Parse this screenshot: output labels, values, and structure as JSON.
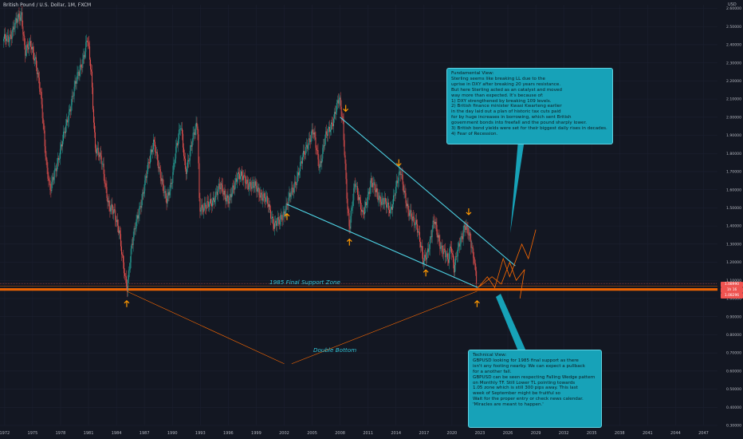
{
  "header": {
    "symbol_title": "British Pound / U.S. Dollar, 1M, FXCM",
    "currency": "USD"
  },
  "colors": {
    "background": "#131722",
    "up": "#26a69a",
    "down": "#ef5350",
    "trendline": "#4dd0e1",
    "support": "#ff6a00",
    "arrow": "#ff9800",
    "callout": "#17a2b8"
  },
  "annotations": {
    "support_zone": "1985 Final Support Zone",
    "double_bottom": "Double Bottom",
    "fundamental": "Fundamental View:\nSterling seems like breaking LL due to the\nuprise in DXY after breaking 20 years resistance.\nBut here Sterling acted as an catalyst and moved\nway more than expected. It's because of:\n1) DXY strengthened by breaking 109 levels.\n2) British finance minister Kwasi Kwarteng earlier\nin the day laid out a plan of historic tax cuts paid\nfor by huge increases in borrowing, which sent British\ngovernment bonds into freefall and the pound sharply lower.\n3) British bond yields were set for their biggest daily rises in decades.\n4) Fear of Recession.",
    "technical": "Technical View:\nGBPUSD looking for 1985 final support as there\nisn't any footing nearby. We can expect a pullback\nfor a another fall.\nGBPUSD can be seen respecting Falling Wedge pattern\non Monthly TF. Still Lower TL pointing towards\n1.05 zone which is still 300 pips away. This last\nweek of September might be fruitful so\nWait for the proper entry or check news calendar.\n'Miracles are meant to happen.'"
  },
  "price_badges": [
    {
      "value": "1.08990",
      "sub": "",
      "color": "#ef5350"
    },
    {
      "value": "1h 16",
      "sub": "",
      "color": "#ef5350"
    },
    {
      "value": "1.08296",
      "sub": "",
      "color": "#ef5350"
    }
  ],
  "chart_data": {
    "type": "candlestick",
    "title": "British Pound / U.S. Dollar, 1M, FXCM",
    "xlabel": "",
    "ylabel": "USD",
    "xlim": [
      1971.5,
      2048.5
    ],
    "ylim": [
      0.3,
      2.62
    ],
    "x_ticks": [
      "1972",
      "1975",
      "1978",
      "1981",
      "1984",
      "1987",
      "1990",
      "1993",
      "1996",
      "1999",
      "2002",
      "2005",
      "2008",
      "2011",
      "2014",
      "2017",
      "2020",
      "2023",
      "2026",
      "2029",
      "2032",
      "2035",
      "2038",
      "2041",
      "2044",
      "2047"
    ],
    "y_ticks": [
      "2.60000",
      "2.50000",
      "2.40000",
      "2.30000",
      "2.20000",
      "2.10000",
      "2.00000",
      "1.90000",
      "1.80000",
      "1.70000",
      "1.60000",
      "1.50000",
      "1.40000",
      "1.30000",
      "1.20000",
      "1.10000",
      "1.00000",
      "0.90000",
      "0.80000",
      "0.70000",
      "0.60000",
      "0.50000",
      "0.40000",
      "0.30000"
    ],
    "price_path": [
      [
        1971.8,
        2.42
      ],
      [
        1972.5,
        2.44
      ],
      [
        1973.2,
        2.52
      ],
      [
        1973.8,
        2.57
      ],
      [
        1974.2,
        2.36
      ],
      [
        1974.8,
        2.4
      ],
      [
        1975.3,
        2.32
      ],
      [
        1975.9,
        2.1
      ],
      [
        1976.5,
        1.74
      ],
      [
        1976.9,
        1.59
      ],
      [
        1977.5,
        1.72
      ],
      [
        1978.5,
        1.93
      ],
      [
        1979.2,
        2.1
      ],
      [
        1979.8,
        2.22
      ],
      [
        1980.5,
        2.34
      ],
      [
        1980.9,
        2.43
      ],
      [
        1981.3,
        2.24
      ],
      [
        1981.7,
        1.84
      ],
      [
        1982.5,
        1.74
      ],
      [
        1983.2,
        1.5
      ],
      [
        1983.8,
        1.47
      ],
      [
        1984.3,
        1.38
      ],
      [
        1984.7,
        1.18
      ],
      [
        1985.1,
        1.05
      ],
      [
        1985.6,
        1.29
      ],
      [
        1986.2,
        1.43
      ],
      [
        1987.2,
        1.67
      ],
      [
        1988.0,
        1.88
      ],
      [
        1988.6,
        1.69
      ],
      [
        1989.4,
        1.55
      ],
      [
        1989.9,
        1.62
      ],
      [
        1990.4,
        1.84
      ],
      [
        1990.9,
        1.96
      ],
      [
        1991.4,
        1.69
      ],
      [
        1992.1,
        1.87
      ],
      [
        1992.7,
        1.96
      ],
      [
        1992.9,
        1.51
      ],
      [
        1993.6,
        1.5
      ],
      [
        1994.4,
        1.55
      ],
      [
        1995.2,
        1.62
      ],
      [
        1996.1,
        1.53
      ],
      [
        1997.0,
        1.69
      ],
      [
        1998.0,
        1.64
      ],
      [
        1999.0,
        1.61
      ],
      [
        2000.2,
        1.53
      ],
      [
        2000.9,
        1.41
      ],
      [
        2001.5,
        1.42
      ],
      [
        2002.3,
        1.52
      ],
      [
        2003.0,
        1.61
      ],
      [
        2003.8,
        1.74
      ],
      [
        2004.5,
        1.86
      ],
      [
        2005.1,
        1.92
      ],
      [
        2005.8,
        1.73
      ],
      [
        2006.4,
        1.88
      ],
      [
        2007.2,
        1.98
      ],
      [
        2007.9,
        2.1
      ],
      [
        2008.3,
        1.98
      ],
      [
        2008.8,
        1.49
      ],
      [
        2009.0,
        1.37
      ],
      [
        2009.6,
        1.66
      ],
      [
        2010.4,
        1.45
      ],
      [
        2011.3,
        1.64
      ],
      [
        2012.3,
        1.55
      ],
      [
        2013.4,
        1.49
      ],
      [
        2014.5,
        1.71
      ],
      [
        2015.3,
        1.47
      ],
      [
        2016.2,
        1.42
      ],
      [
        2016.6,
        1.3
      ],
      [
        2016.9,
        1.2
      ],
      [
        2017.6,
        1.3
      ],
      [
        2018.1,
        1.43
      ],
      [
        2018.9,
        1.27
      ],
      [
        2019.6,
        1.21
      ],
      [
        2019.9,
        1.31
      ],
      [
        2020.2,
        1.16
      ],
      [
        2020.8,
        1.3
      ],
      [
        2021.4,
        1.41
      ],
      [
        2021.9,
        1.33
      ],
      [
        2022.4,
        1.22
      ],
      [
        2022.7,
        1.08
      ]
    ],
    "support_level": 1.05,
    "wedge_upper": [
      [
        2008.0,
        2.0
      ],
      [
        2026.8,
        1.18
      ]
    ],
    "wedge_lower": [
      [
        2002.3,
        1.52
      ],
      [
        2022.8,
        1.06
      ]
    ],
    "double_bottom_lines": [
      [
        [
          1985.1,
          1.04
        ],
        [
          2002.0,
          0.64
        ]
      ],
      [
        [
          2002.8,
          0.64
        ],
        [
          2022.7,
          1.04
        ]
      ]
    ],
    "arrow_up_points": [
      [
        1985.1,
        0.97
      ],
      [
        2002.3,
        1.45
      ],
      [
        2009.0,
        1.31
      ],
      [
        2017.2,
        1.14
      ],
      [
        2022.7,
        0.97
      ]
    ],
    "arrow_down_points": [
      [
        2008.6,
        2.05
      ],
      [
        2014.3,
        1.75
      ],
      [
        2021.8,
        1.48
      ]
    ],
    "projection_up": [
      [
        2022.8,
        1.06
      ],
      [
        2023.8,
        1.12
      ],
      [
        2024.6,
        1.06
      ],
      [
        2025.5,
        1.22
      ],
      [
        2026.2,
        1.12
      ],
      [
        2027.5,
        1.3
      ],
      [
        2028.2,
        1.22
      ],
      [
        2029.0,
        1.38
      ]
    ],
    "projection_down": [
      [
        2022.8,
        1.06
      ],
      [
        2024.3,
        1.12
      ],
      [
        2025.3,
        1.08
      ],
      [
        2026.2,
        1.2
      ],
      [
        2026.9,
        1.1
      ],
      [
        2027.8,
        1.16
      ],
      [
        2027.3,
        1.0
      ]
    ],
    "last_price": 1.08296
  }
}
